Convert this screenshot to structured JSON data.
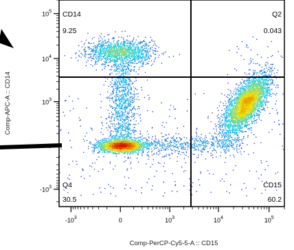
{
  "chart_data": {
    "type": "scatter",
    "title": "",
    "xlabel": "Comp-PerCP-Cy5-5-A :: CD15",
    "ylabel": "Comp-APC-A :: CD14",
    "scale": "biexponential",
    "x_ticks": [
      {
        "value": -1000,
        "base": "-10",
        "exp": "3"
      },
      {
        "value": 0,
        "base": "0",
        "exp": ""
      },
      {
        "value": 1000,
        "base": "10",
        "exp": "3"
      },
      {
        "value": 10000,
        "base": "10",
        "exp": "4"
      },
      {
        "value": 100000,
        "base": "10",
        "exp": "5"
      }
    ],
    "y_ticks": [
      {
        "value": -1000,
        "base": "-10",
        "exp": "3"
      },
      {
        "value": 0,
        "base": "0",
        "exp": ""
      },
      {
        "value": 1000,
        "base": "10",
        "exp": "3"
      },
      {
        "value": 10000,
        "base": "10",
        "exp": "4"
      },
      {
        "value": 100000,
        "base": "10",
        "exp": "5"
      }
    ],
    "xlim": [
      -1800,
      200000
    ],
    "ylim": [
      -2600,
      200000
    ],
    "gates": {
      "x": 2800,
      "y": 3800
    },
    "quadrants": [
      {
        "name": "CD14",
        "percent": "9.25",
        "position": "top-left"
      },
      {
        "name": "Q2",
        "percent": "0.043",
        "position": "top-right"
      },
      {
        "name": "Q4",
        "percent": "30.5",
        "position": "bottom-left"
      },
      {
        "name": "CD15",
        "percent": "60.2",
        "position": "bottom-right"
      }
    ],
    "populations": [
      {
        "label": "CD14",
        "x_center": 0,
        "y_center": 14000,
        "percent": 9.25
      },
      {
        "label": "Q4",
        "x_center": 0,
        "y_center": 0,
        "percent": 30.5
      },
      {
        "label": "CD15",
        "x_center": 35000,
        "y_center": 900,
        "percent": 60.2
      }
    ],
    "colors": {
      "low": "#1010c8",
      "mid": "#10d0f0",
      "high_mid": "#f0e000",
      "high": "#e00000"
    },
    "grid": false
  }
}
